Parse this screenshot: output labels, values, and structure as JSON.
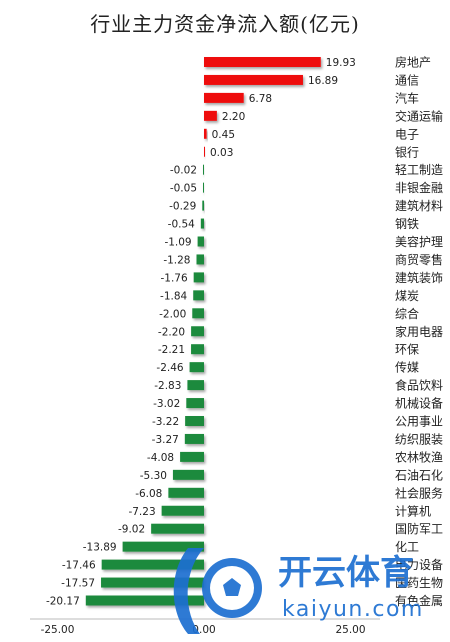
{
  "chart_data": {
    "type": "bar",
    "orientation": "horizontal",
    "title": "行业主力资金净流入额(亿元)",
    "xlim": [
      -25,
      25
    ],
    "x_ticks": [
      "-25.00",
      "0.00",
      "25.00"
    ],
    "colors": {
      "positive": "#ee1111",
      "negative": "#1f8a3c"
    },
    "categories": [
      "房地产",
      "通信",
      "汽车",
      "交通运输",
      "电子",
      "银行",
      "轻工制造",
      "非银金融",
      "建筑材料",
      "钢铁",
      "美容护理",
      "商贸零售",
      "建筑装饰",
      "煤炭",
      "综合",
      "家用电器",
      "环保",
      "传媒",
      "食品饮料",
      "机械设备",
      "公用事业",
      "纺织服装",
      "农林牧渔",
      "石油石化",
      "社会服务",
      "计算机",
      "国防军工",
      "化工",
      "电力设备",
      "医药生物",
      "有色金属"
    ],
    "values": [
      19.93,
      16.89,
      6.78,
      2.2,
      0.45,
      0.03,
      -0.02,
      -0.05,
      -0.29,
      -0.54,
      -1.09,
      -1.28,
      -1.76,
      -1.84,
      -2.0,
      -2.2,
      -2.21,
      -2.46,
      -2.83,
      -3.02,
      -3.22,
      -3.27,
      -4.08,
      -5.3,
      -6.08,
      -7.23,
      -9.02,
      -13.89,
      -17.46,
      -17.57,
      -20.17
    ],
    "value_labels": [
      "19.93",
      "16.89",
      "6.78",
      "2.20",
      "0.45",
      "0.03",
      "-0.02",
      "-0.05",
      "-0.29",
      "-0.54",
      "-1.09",
      "-1.28",
      "-1.76",
      "-1.84",
      "-2.00",
      "-2.20",
      "-2.21",
      "-2.46",
      "-2.83",
      "-3.02",
      "-3.22",
      "-3.27",
      "-4.08",
      "-5.30",
      "-6.08",
      "-7.23",
      "-9.02",
      "-13.89",
      "-17.46",
      "-17.57",
      "-20.17"
    ]
  },
  "watermark": {
    "brand_cn": "开云体育",
    "brand_en": "kaiyun.com"
  }
}
